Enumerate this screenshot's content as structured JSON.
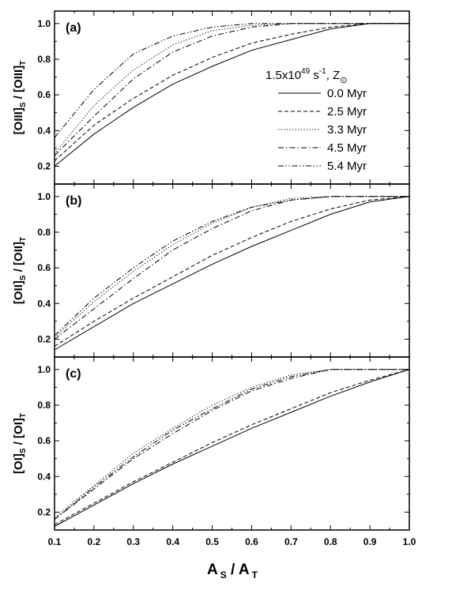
{
  "chart_data": {
    "type": "line",
    "legend": {
      "title": {
        "main": "1.5x10",
        "exp": "49",
        "unit": " s",
        "unit_exp": "-1",
        "sep": ", Z",
        "sun": "⊙"
      },
      "placement": "top-right of panel (a)"
    },
    "x": [
      0.1,
      0.2,
      0.3,
      0.4,
      0.5,
      0.6,
      0.7,
      0.8,
      0.9,
      1.0
    ],
    "xlim": [
      0.1,
      1.0
    ],
    "ylim": [
      0.1,
      1.07
    ],
    "xticks": [
      "0.1",
      "0.2",
      "0.3",
      "0.4",
      "0.5",
      "0.6",
      "0.7",
      "0.8",
      "0.9",
      "1.0"
    ],
    "yticks": [
      "0.2",
      "0.4",
      "0.6",
      "0.8",
      "1.0"
    ],
    "xlabel": {
      "main": "A",
      "sub1": "S",
      "sep": " / A",
      "sub2": "T"
    },
    "panels": [
      {
        "label": "(a)",
        "ylabel": {
          "p1": "[OIII]",
          "s1": "S",
          "p2": " / [OIII]",
          "s2": "T"
        },
        "series": [
          {
            "name": "0.0 Myr",
            "style": "solid",
            "values": [
              0.2,
              0.38,
              0.53,
              0.66,
              0.76,
              0.85,
              0.91,
              0.97,
              1.0,
              1.0
            ]
          },
          {
            "name": "2.5 Myr",
            "style": "dashed",
            "values": [
              0.23,
              0.43,
              0.58,
              0.71,
              0.81,
              0.89,
              0.94,
              0.98,
              1.0,
              1.0
            ]
          },
          {
            "name": "3.3 Myr",
            "style": "dotted",
            "values": [
              0.27,
              0.54,
              0.74,
              0.88,
              0.96,
              0.99,
              1.0,
              1.0,
              1.0,
              1.0
            ]
          },
          {
            "name": "4.5 Myr",
            "style": "dashdot",
            "values": [
              0.26,
              0.48,
              0.69,
              0.84,
              0.93,
              0.98,
              1.0,
              1.0,
              1.0,
              1.0
            ]
          },
          {
            "name": "5.4 Myr",
            "style": "dashdotdot",
            "values": [
              0.36,
              0.63,
              0.83,
              0.93,
              0.98,
              1.0,
              1.0,
              1.0,
              1.0,
              1.0
            ]
          }
        ]
      },
      {
        "label": "(b)",
        "ylabel": {
          "p1": "[OII]",
          "s1": "S",
          "p2": " / [OII]",
          "s2": "T"
        },
        "series": [
          {
            "name": "0.0 Myr",
            "style": "solid",
            "values": [
              0.14,
              0.27,
              0.4,
              0.51,
              0.62,
              0.72,
              0.81,
              0.9,
              0.97,
              1.0
            ]
          },
          {
            "name": "2.5 Myr",
            "style": "dashed",
            "values": [
              0.16,
              0.3,
              0.43,
              0.55,
              0.67,
              0.77,
              0.86,
              0.93,
              0.98,
              1.0
            ]
          },
          {
            "name": "3.3 Myr",
            "style": "dotted",
            "values": [
              0.21,
              0.41,
              0.58,
              0.73,
              0.85,
              0.94,
              0.99,
              1.0,
              1.0,
              1.0
            ]
          },
          {
            "name": "4.5 Myr",
            "style": "dashdot",
            "values": [
              0.2,
              0.37,
              0.54,
              0.7,
              0.82,
              0.92,
              0.98,
              1.0,
              1.0,
              1.0
            ]
          },
          {
            "name": "5.4 Myr",
            "style": "dashdotdot",
            "values": [
              0.22,
              0.43,
              0.6,
              0.75,
              0.86,
              0.94,
              0.98,
              1.0,
              1.0,
              1.0
            ]
          }
        ]
      },
      {
        "label": "(c)",
        "ylabel": {
          "p1": "[OI]",
          "s1": "S",
          "p2": " / [OI]",
          "s2": "T"
        },
        "series": [
          {
            "name": "0.0 Myr",
            "style": "solid",
            "values": [
              0.12,
              0.24,
              0.36,
              0.47,
              0.57,
              0.67,
              0.76,
              0.85,
              0.93,
              1.0
            ]
          },
          {
            "name": "2.5 Myr",
            "style": "dashed",
            "values": [
              0.13,
              0.25,
              0.37,
              0.48,
              0.59,
              0.69,
              0.78,
              0.87,
              0.94,
              1.0
            ]
          },
          {
            "name": "3.3 Myr",
            "style": "dotted",
            "values": [
              0.17,
              0.35,
              0.53,
              0.67,
              0.8,
              0.9,
              0.97,
              1.0,
              1.0,
              1.0
            ]
          },
          {
            "name": "4.5 Myr",
            "style": "dashdot",
            "values": [
              0.16,
              0.33,
              0.5,
              0.64,
              0.77,
              0.88,
              0.95,
              1.0,
              1.0,
              1.0
            ]
          },
          {
            "name": "5.4 Myr",
            "style": "dashdotdot",
            "values": [
              0.16,
              0.34,
              0.51,
              0.66,
              0.78,
              0.89,
              0.96,
              1.0,
              1.0,
              1.0
            ]
          }
        ]
      }
    ]
  }
}
